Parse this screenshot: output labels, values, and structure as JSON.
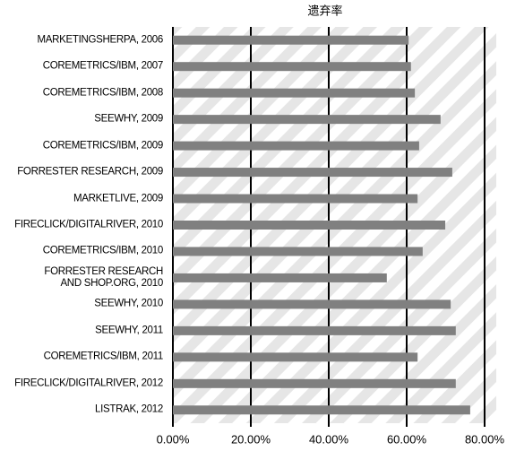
{
  "chart_data": {
    "type": "bar",
    "orientation": "horizontal",
    "title": "遗弃率",
    "categories": [
      "MARKETINGSHERPA, 2006",
      "COREMETRICS/IBM, 2007",
      "COREMETRICS/IBM, 2008",
      "SEEWHY, 2009",
      "COREMETRICS/IBM, 2009",
      "FORRESTER RESEARCH, 2009",
      "MARKETLIVE, 2009",
      "FIRECLICK/DIGITALRIVER, 2010",
      "COREMETRICS/IBM, 2010",
      "FORRESTER RESEARCH\nAND SHOP.ORG, 2010",
      "SEEWHY, 2010",
      "SEEWHY, 2011",
      "COREMETRICS/IBM, 2011",
      "FIRECLICK/DIGITALRIVER, 2012",
      "LISTRAK, 2012"
    ],
    "values": [
      60.5,
      61.1,
      62.1,
      68.7,
      63.2,
      71.7,
      62.8,
      69.9,
      64.1,
      54.9,
      71.3,
      72.6,
      62.8,
      72.6,
      76.3
    ],
    "color": "#808080",
    "xlim": [
      0,
      83
    ],
    "xticks": [
      {
        "value": 0,
        "label": "0.00%"
      },
      {
        "value": 20,
        "label": "20.00%"
      },
      {
        "value": 40,
        "label": "40.00%"
      },
      {
        "value": 60,
        "label": "60.00%"
      },
      {
        "value": 80,
        "label": "80.00%"
      }
    ],
    "grid": true
  }
}
